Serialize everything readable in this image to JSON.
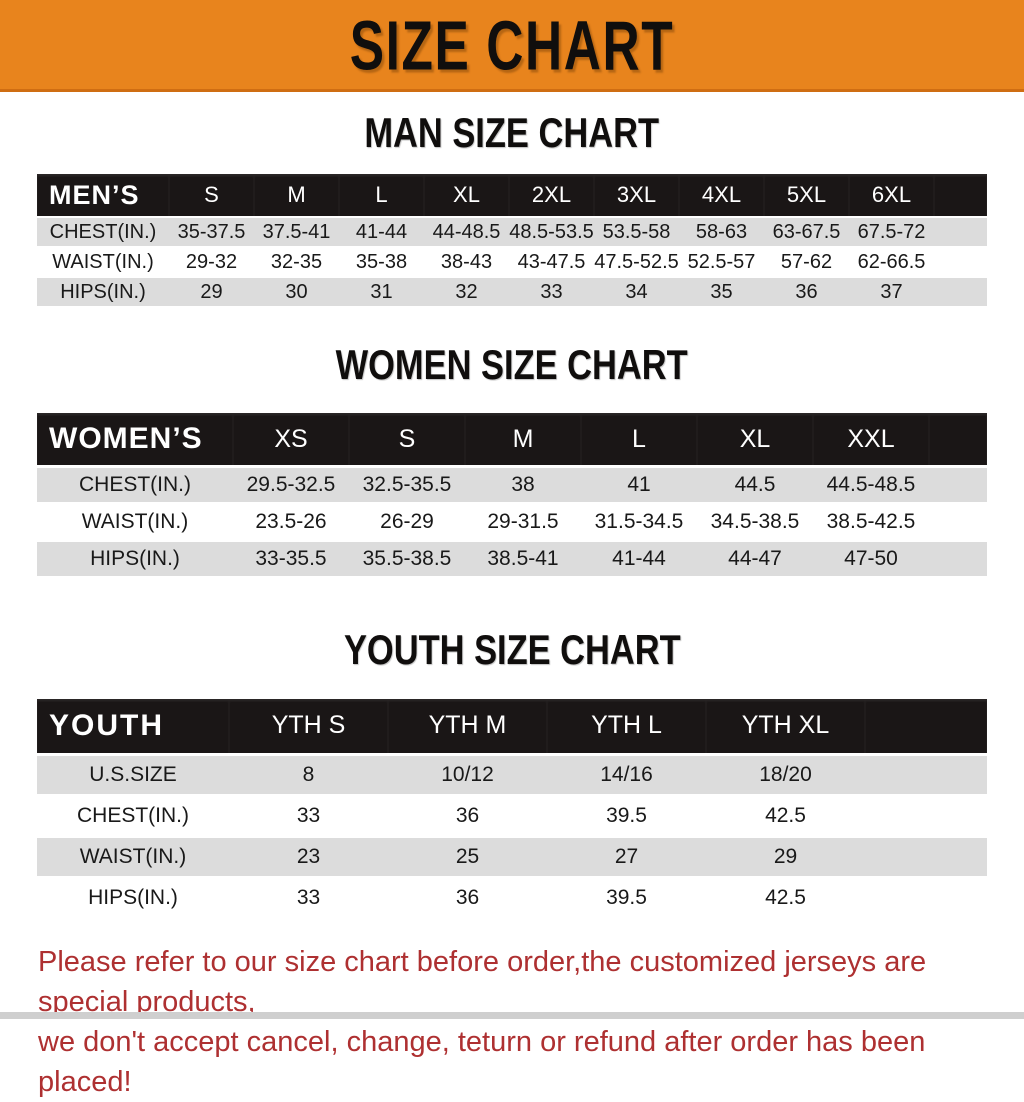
{
  "banner": {
    "title": "SIZE CHART"
  },
  "colors": {
    "banner_bg": "#e8841d",
    "banner_border": "#cf6d12",
    "header_bg": "#1a1616",
    "row_gray": "#dcdcdc",
    "footer_red": "#ae3031",
    "heading_text": "#100e0d"
  },
  "sections": [
    {
      "heading": "MAN SIZE CHART",
      "table": {
        "header_label": "MEN’S",
        "columns": [
          "S",
          "M",
          "L",
          "XL",
          "2XL",
          "3XL",
          "4XL",
          "5XL",
          "6XL"
        ],
        "rows": [
          {
            "label": "CHEST(IN.)",
            "values": [
              "35-37.5",
              "37.5-41",
              "41-44",
              "44-48.5",
              "48.5-53.5",
              "53.5-58",
              "58-63",
              "63-67.5",
              "67.5-72"
            ]
          },
          {
            "label": "WAIST(IN.)",
            "values": [
              "29-32",
              "32-35",
              "35-38",
              "38-43",
              "43-47.5",
              "47.5-52.5",
              "52.5-57",
              "57-62",
              "62-66.5"
            ]
          },
          {
            "label": "HIPS(IN.)",
            "values": [
              "29",
              "30",
              "31",
              "32",
              "33",
              "34",
              "35",
              "36",
              "37"
            ]
          }
        ]
      }
    },
    {
      "heading": "WOMEN SIZE CHART",
      "table": {
        "header_label": "WOMEN’S",
        "columns": [
          "XS",
          "S",
          "M",
          "L",
          "XL",
          "XXL"
        ],
        "rows": [
          {
            "label": "CHEST(IN.)",
            "values": [
              "29.5-32.5",
              "32.5-35.5",
              "38",
              "41",
              "44.5",
              "44.5-48.5"
            ]
          },
          {
            "label": "WAIST(IN.)",
            "values": [
              "23.5-26",
              "26-29",
              "29-31.5",
              "31.5-34.5",
              "34.5-38.5",
              "38.5-42.5"
            ]
          },
          {
            "label": "HIPS(IN.)",
            "values": [
              "33-35.5",
              "35.5-38.5",
              "38.5-41",
              "41-44",
              "44-47",
              "47-50"
            ]
          }
        ]
      }
    },
    {
      "heading": "YOUTH SIZE CHART",
      "table": {
        "header_label": "YOUTH",
        "columns": [
          "YTH S",
          "YTH M",
          "YTH L",
          "YTH XL"
        ],
        "rows": [
          {
            "label": "U.S.SIZE",
            "values": [
              "8",
              "10/12",
              "14/16",
              "18/20"
            ]
          },
          {
            "label": "CHEST(IN.)",
            "values": [
              "33",
              "36",
              "39.5",
              "42.5"
            ]
          },
          {
            "label": "WAIST(IN.)",
            "values": [
              "23",
              "25",
              "27",
              "29"
            ]
          },
          {
            "label": "HIPS(IN.)",
            "values": [
              "33",
              "36",
              "39.5",
              "42.5"
            ]
          }
        ]
      }
    }
  ],
  "footer": {
    "line1": "Please refer to our size chart before order,the customized jerseys are special products,",
    "line2": "we don't accept cancel, change, teturn or refund after order has been placed!"
  }
}
